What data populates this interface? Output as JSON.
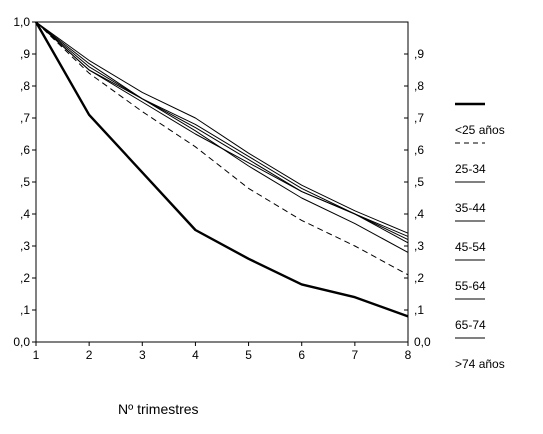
{
  "chart_data": {
    "type": "line",
    "title": "",
    "xlabel": "Nº trimestres",
    "ylabel": "",
    "x": [
      1,
      2,
      3,
      4,
      5,
      6,
      7,
      8
    ],
    "x_tick_labels": [
      "1",
      "2",
      "3",
      "4",
      "5",
      "6",
      "7",
      "8"
    ],
    "xlim": [
      1,
      8
    ],
    "ylim": [
      0,
      1
    ],
    "y_tick_labels_left": [
      "0,0",
      ",1",
      ",2",
      ",3",
      ",4",
      ",5",
      ",6",
      ",7",
      ",8",
      ",9",
      "1,0"
    ],
    "y_tick_labels_right": [
      "0,0",
      ",1",
      ",2",
      ",3",
      ",4",
      ",5",
      ",6",
      ",7",
      ",8",
      ",9"
    ],
    "grid": false,
    "legend_position": "right",
    "series": [
      {
        "name": "<25 años",
        "style": "thick",
        "values": [
          1.0,
          0.71,
          0.53,
          0.35,
          0.26,
          0.18,
          0.14,
          0.08
        ]
      },
      {
        "name": "25-34",
        "style": "dashed",
        "values": [
          1.0,
          0.84,
          0.72,
          0.61,
          0.48,
          0.38,
          0.3,
          0.21
        ]
      },
      {
        "name": "35-44",
        "style": "solid",
        "values": [
          1.0,
          0.86,
          0.76,
          0.66,
          0.55,
          0.45,
          0.37,
          0.28
        ]
      },
      {
        "name": "45-54",
        "style": "solid",
        "values": [
          1.0,
          0.87,
          0.76,
          0.67,
          0.57,
          0.47,
          0.4,
          0.31
        ]
      },
      {
        "name": "55-64",
        "style": "solid",
        "values": [
          1.0,
          0.85,
          0.76,
          0.68,
          0.58,
          0.48,
          0.4,
          0.33
        ]
      },
      {
        "name": "65-74",
        "style": "solid",
        "values": [
          1.0,
          0.88,
          0.78,
          0.7,
          0.59,
          0.49,
          0.41,
          0.34
        ]
      },
      {
        "name": ">74 años",
        "style": "solid",
        "values": [
          1.0,
          0.85,
          0.75,
          0.65,
          0.56,
          0.47,
          0.4,
          0.32
        ]
      }
    ],
    "colors": {
      "line": "#000000",
      "background": "#ffffff"
    }
  }
}
